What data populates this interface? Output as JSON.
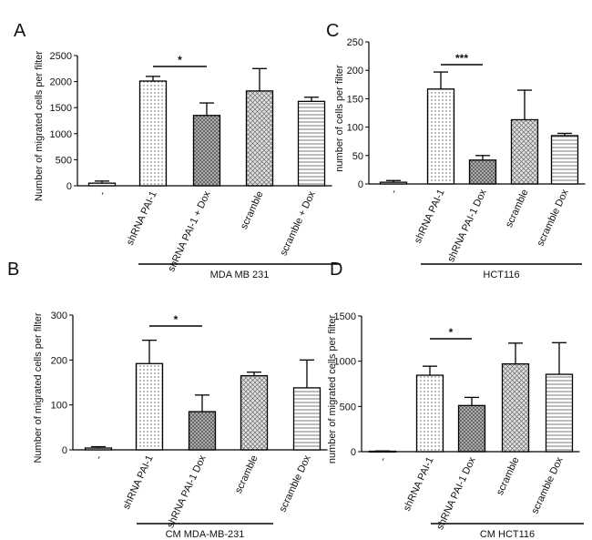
{
  "chart_data": [
    {
      "type": "bar",
      "panel_letter": "A",
      "ylabel": "Number of migrated cells per filter",
      "ylim": [
        0,
        2500
      ],
      "yticks": [
        0,
        500,
        1000,
        1500,
        2000,
        2500
      ],
      "categories": [
        "-",
        "shRNA PAI-1",
        "shRNA PAI-1 + Dox",
        "scramble",
        "scramble + Dox"
      ],
      "values": [
        50,
        2010,
        1350,
        1820,
        1620
      ],
      "errors": [
        40,
        90,
        240,
        430,
        80
      ],
      "patterns": [
        "none",
        "dots",
        "grid",
        "cross",
        "hlines"
      ],
      "group_label": "MDA MB 231",
      "significance": {
        "from": 1,
        "to": 2,
        "label": "*"
      }
    },
    {
      "type": "bar",
      "panel_letter": "C",
      "ylabel": "number of cells per filter",
      "ylim": [
        0,
        250
      ],
      "yticks": [
        0,
        50,
        100,
        150,
        200,
        250
      ],
      "categories": [
        "-",
        "shRNA PAI-1",
        "shRNA PAI-1 Dox",
        "scramble",
        "scramble Dox"
      ],
      "values": [
        3,
        167,
        42,
        113,
        85
      ],
      "errors": [
        3,
        30,
        8,
        52,
        4
      ],
      "patterns": [
        "none",
        "dots",
        "grid",
        "cross",
        "hlines"
      ],
      "group_label": "HCT116",
      "significance": {
        "from": 1,
        "to": 2,
        "label": "***"
      }
    },
    {
      "type": "bar",
      "panel_letter": "B",
      "ylabel": "Number of migrated cells per filter",
      "ylim": [
        0,
        300
      ],
      "yticks": [
        0,
        100,
        200,
        300
      ],
      "categories": [
        "-",
        "shRNA PAI-1",
        "shRNA PAI-1 Dox",
        "scramble",
        "scramble Dox"
      ],
      "values": [
        4,
        192,
        85,
        165,
        138
      ],
      "errors": [
        3,
        52,
        37,
        8,
        62
      ],
      "patterns": [
        "none",
        "dots",
        "grid",
        "cross",
        "hlines"
      ],
      "group_label": "CM MDA-MB-231",
      "significance": {
        "from": 1,
        "to": 2,
        "label": "*"
      }
    },
    {
      "type": "bar",
      "panel_letter": "D",
      "ylabel": "number of migrated cells per filter",
      "ylim": [
        0,
        1500
      ],
      "yticks": [
        0,
        500,
        1000,
        1500
      ],
      "categories": [
        "-",
        "shRNA PAI-1",
        "shRNA PAI-1 Dox",
        "scramble",
        "scramble Dox"
      ],
      "values": [
        5,
        845,
        510,
        970,
        855
      ],
      "errors": [
        3,
        100,
        90,
        230,
        350
      ],
      "patterns": [
        "none",
        "dots",
        "grid",
        "cross",
        "hlines"
      ],
      "group_label": "CM HCT116",
      "significance": {
        "from": 1,
        "to": 2,
        "label": "*"
      }
    }
  ]
}
